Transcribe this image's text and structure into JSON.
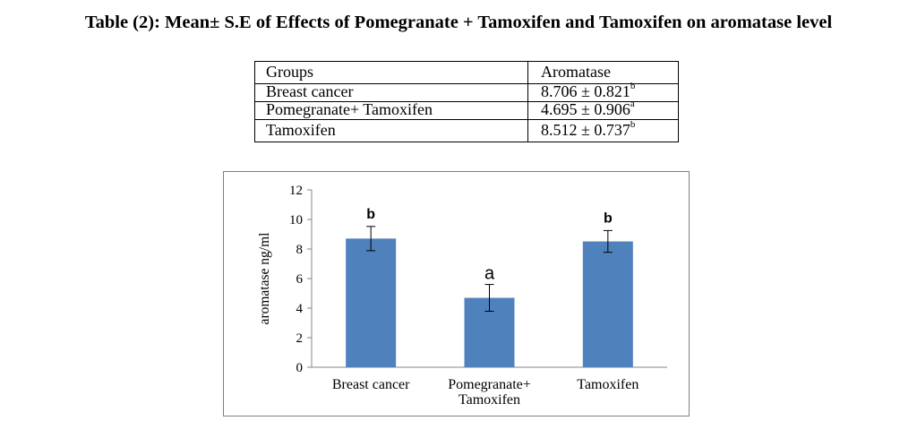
{
  "title": "Table (2): Mean± S.E of Effects of Pomegranate + Tamoxifen and Tamoxifen on aromatase level",
  "table": {
    "headers": [
      "Groups",
      "Aromatase"
    ],
    "rows": [
      {
        "group": "Breast cancer",
        "value": "8.706 ± 0.821",
        "sup": "b"
      },
      {
        "group": "Pomegranate+ Tamoxifen",
        "value": "4.695 ± 0.906",
        "sup": "a"
      },
      {
        "group": "Tamoxifen",
        "value": "8.512 ± 0.737",
        "sup": "b"
      }
    ]
  },
  "chart_data": {
    "type": "bar",
    "categories": [
      "Breast cancer",
      "Pomegranate+ Tamoxifen",
      "Tamoxifen"
    ],
    "category_lines": [
      [
        "Breast cancer"
      ],
      [
        "Pomegranate+",
        "Tamoxifen"
      ],
      [
        "Tamoxifen"
      ]
    ],
    "values": [
      8.706,
      4.695,
      8.512
    ],
    "errors": [
      0.821,
      0.906,
      0.737
    ],
    "letters": [
      "b",
      "a",
      "b"
    ],
    "ylabel": "aromatase ng/ml",
    "xlabel": "",
    "ylim": [
      0,
      12
    ],
    "yticks": [
      0,
      2,
      4,
      6,
      8,
      10,
      12
    ],
    "grid": false,
    "legend": "none",
    "bar_color": "#4f81bd"
  }
}
